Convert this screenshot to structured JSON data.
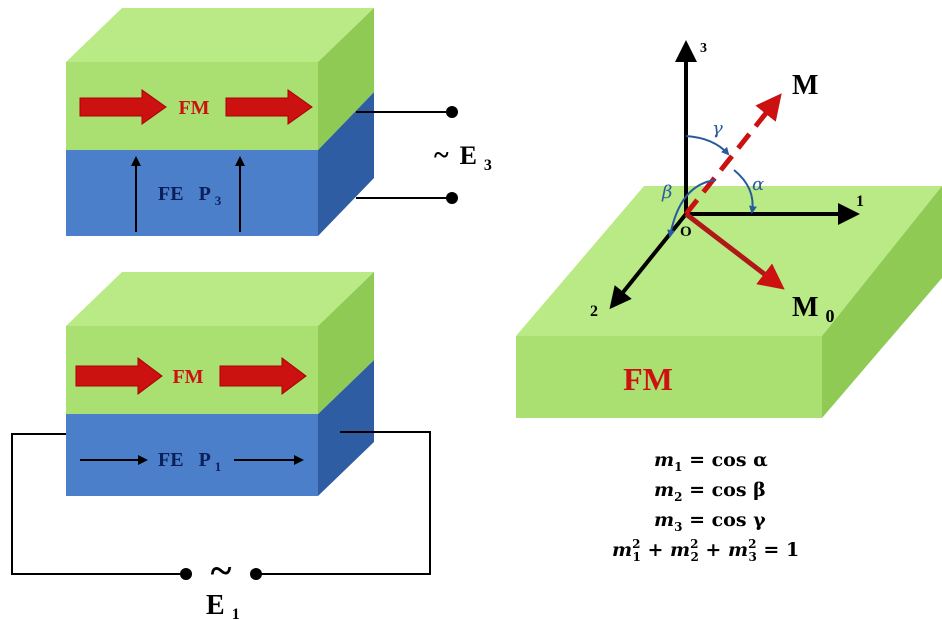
{
  "top_stack": {
    "fm_label": "FM",
    "fe_label": "FE",
    "p_label": "P",
    "p_sub": "3",
    "field_tilde": "~",
    "field_label": "E",
    "field_sub": "3"
  },
  "bottom_stack": {
    "fm_label": "FM",
    "fe_label": "FE",
    "p_label": "P",
    "p_sub": "1",
    "field_tilde": "~",
    "field_label": "E",
    "field_sub": "1"
  },
  "axes_diagram": {
    "slab_label": "FM",
    "origin_label": "O",
    "axis1": "1",
    "axis2": "2",
    "axis3": "3",
    "m_label": "M",
    "m0_label": "M",
    "m0_sub": "0",
    "alpha": "α",
    "beta": "β",
    "gamma": "γ"
  },
  "equations": [
    {
      "lhs": "m",
      "sub": "1",
      "rhs": " = cos α"
    },
    {
      "lhs": "m",
      "sub": "2",
      "rhs": " = cos β"
    },
    {
      "lhs": "m",
      "sub": "3",
      "rhs": " = cos γ"
    }
  ],
  "equation_sum": {
    "terms": [
      "m",
      "m",
      "m"
    ],
    "subs": [
      "1",
      "2",
      "3"
    ],
    "sup": "2",
    "rhs": " = 1"
  },
  "colors": {
    "green_front": "#a9e071",
    "green_top": "#b9ea86",
    "green_side": "#8fca55",
    "blue_front": "#4c7fc9",
    "blue_side": "#2f5da3",
    "red": "#cc1111",
    "dark_red": "#b01818",
    "label_blue": "#0b1f5a",
    "arc_blue": "#2a5a9e"
  }
}
